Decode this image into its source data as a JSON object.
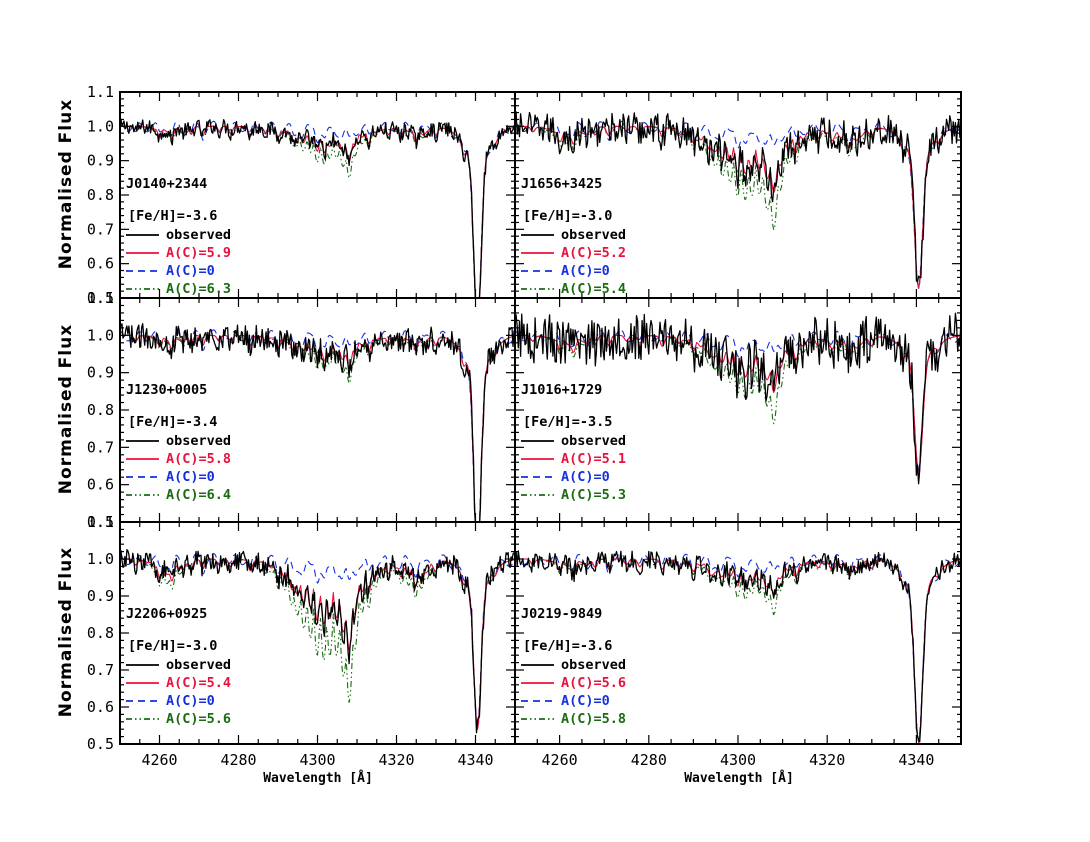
{
  "figure": {
    "ylabel": "Normalised Flux",
    "xlabel": "Wavelength [Å]"
  },
  "legend": {
    "observed": "observed"
  },
  "colors": {
    "observed": "#000000",
    "fit": "#e8123c",
    "ac0": "#1530e0",
    "upper": "#1a6b12"
  },
  "chart_data": [
    {
      "type": "line",
      "star": "J0140+2344",
      "feh_label": "[Fe/H]=-3.6",
      "xlim": [
        4250,
        4350
      ],
      "ylim": [
        0.5,
        1.1
      ],
      "xticks": [
        4260,
        4280,
        4300,
        4320,
        4340
      ],
      "yticks": [
        0.5,
        0.6,
        0.7,
        0.8,
        0.9,
        1.0,
        1.1
      ],
      "series": [
        {
          "name": "observed",
          "style": "solid",
          "color": "#000000"
        },
        {
          "name": "A(C)=5.9",
          "style": "solid",
          "color": "#e8123c"
        },
        {
          "name": "A(C)=0",
          "style": "dashed",
          "color": "#1530e0"
        },
        {
          "name": "A(C)=6.3",
          "style": "dashdot",
          "color": "#1a6b12"
        }
      ],
      "features": {
        "ch_depth": 0.06,
        "h_depth": 0.5,
        "noise": 0.012,
        "ac0_frac": 0.25
      }
    },
    {
      "type": "line",
      "star": "J1656+3425",
      "feh_label": "[Fe/H]=-3.0",
      "xlim": [
        4250,
        4350
      ],
      "ylim": [
        0.5,
        1.1
      ],
      "xticks": [
        4260,
        4280,
        4300,
        4320,
        4340
      ],
      "yticks": [
        0.5,
        0.6,
        0.7,
        0.8,
        0.9,
        1.0,
        1.1
      ],
      "series": [
        {
          "name": "observed",
          "style": "solid",
          "color": "#000000"
        },
        {
          "name": "A(C)=5.2",
          "style": "solid",
          "color": "#e8123c"
        },
        {
          "name": "A(C)=0",
          "style": "dashed",
          "color": "#1530e0"
        },
        {
          "name": "A(C)=5.4",
          "style": "dashdot",
          "color": "#1a6b12"
        }
      ],
      "features": {
        "ch_depth": 0.13,
        "h_depth": 0.4,
        "noise": 0.025,
        "ac0_frac": 0.25
      }
    },
    {
      "type": "line",
      "star": "J1230+0005",
      "feh_label": "[Fe/H]=-3.4",
      "xlim": [
        4250,
        4350
      ],
      "ylim": [
        0.5,
        1.1
      ],
      "xticks": [
        4260,
        4280,
        4300,
        4320,
        4340
      ],
      "yticks": [
        0.5,
        0.6,
        0.7,
        0.8,
        0.9,
        1.0,
        1.1
      ],
      "series": [
        {
          "name": "observed",
          "style": "solid",
          "color": "#000000"
        },
        {
          "name": "A(C)=5.8",
          "style": "solid",
          "color": "#e8123c"
        },
        {
          "name": "A(C)=0",
          "style": "dashed",
          "color": "#1530e0"
        },
        {
          "name": "A(C)=6.4",
          "style": "dashdot",
          "color": "#1a6b12"
        }
      ],
      "features": {
        "ch_depth": 0.05,
        "h_depth": 0.5,
        "noise": 0.018,
        "ac0_frac": 0.25
      }
    },
    {
      "type": "line",
      "star": "J1016+1729",
      "feh_label": "[Fe/H]=-3.5",
      "xlim": [
        4250,
        4350
      ],
      "ylim": [
        0.5,
        1.1
      ],
      "xticks": [
        4260,
        4280,
        4300,
        4320,
        4340
      ],
      "yticks": [
        0.5,
        0.6,
        0.7,
        0.8,
        0.9,
        1.0,
        1.1
      ],
      "series": [
        {
          "name": "observed",
          "style": "solid",
          "color": "#000000"
        },
        {
          "name": "A(C)=5.1",
          "style": "solid",
          "color": "#e8123c"
        },
        {
          "name": "A(C)=0",
          "style": "dashed",
          "color": "#1530e0"
        },
        {
          "name": "A(C)=5.3",
          "style": "dashdot",
          "color": "#1a6b12"
        }
      ],
      "features": {
        "ch_depth": 0.1,
        "h_depth": 0.31,
        "noise": 0.035,
        "ac0_frac": 0.25
      }
    },
    {
      "type": "line",
      "star": "J2206+0925",
      "feh_label": "[Fe/H]=-3.0",
      "xlim": [
        4250,
        4350
      ],
      "ylim": [
        0.5,
        1.1
      ],
      "xticks": [
        4260,
        4280,
        4300,
        4320,
        4340
      ],
      "yticks": [
        0.5,
        0.6,
        0.7,
        0.8,
        0.9,
        1.0,
        1.1
      ],
      "series": [
        {
          "name": "observed",
          "style": "solid",
          "color": "#000000"
        },
        {
          "name": "A(C)=5.4",
          "style": "solid",
          "color": "#e8123c"
        },
        {
          "name": "A(C)=0",
          "style": "dashed",
          "color": "#1530e0"
        },
        {
          "name": "A(C)=5.6",
          "style": "dashdot",
          "color": "#1a6b12"
        }
      ],
      "features": {
        "ch_depth": 0.17,
        "h_depth": 0.39,
        "noise": 0.015,
        "ac0_frac": 0.2
      }
    },
    {
      "type": "line",
      "star": "J0219-9849",
      "feh_label": "[Fe/H]=-3.6",
      "xlim": [
        4250,
        4350
      ],
      "ylim": [
        0.5,
        1.1
      ],
      "xticks": [
        4260,
        4280,
        4300,
        4320,
        4340
      ],
      "yticks": [
        0.5,
        0.6,
        0.7,
        0.8,
        0.9,
        1.0,
        1.1
      ],
      "series": [
        {
          "name": "observed",
          "style": "solid",
          "color": "#000000"
        },
        {
          "name": "A(C)=5.6",
          "style": "solid",
          "color": "#e8123c"
        },
        {
          "name": "A(C)=0",
          "style": "dashed",
          "color": "#1530e0"
        },
        {
          "name": "A(C)=5.8",
          "style": "dashdot",
          "color": "#1a6b12"
        }
      ],
      "features": {
        "ch_depth": 0.06,
        "h_depth": 0.42,
        "noise": 0.014,
        "ac0_frac": 0.25
      }
    }
  ]
}
